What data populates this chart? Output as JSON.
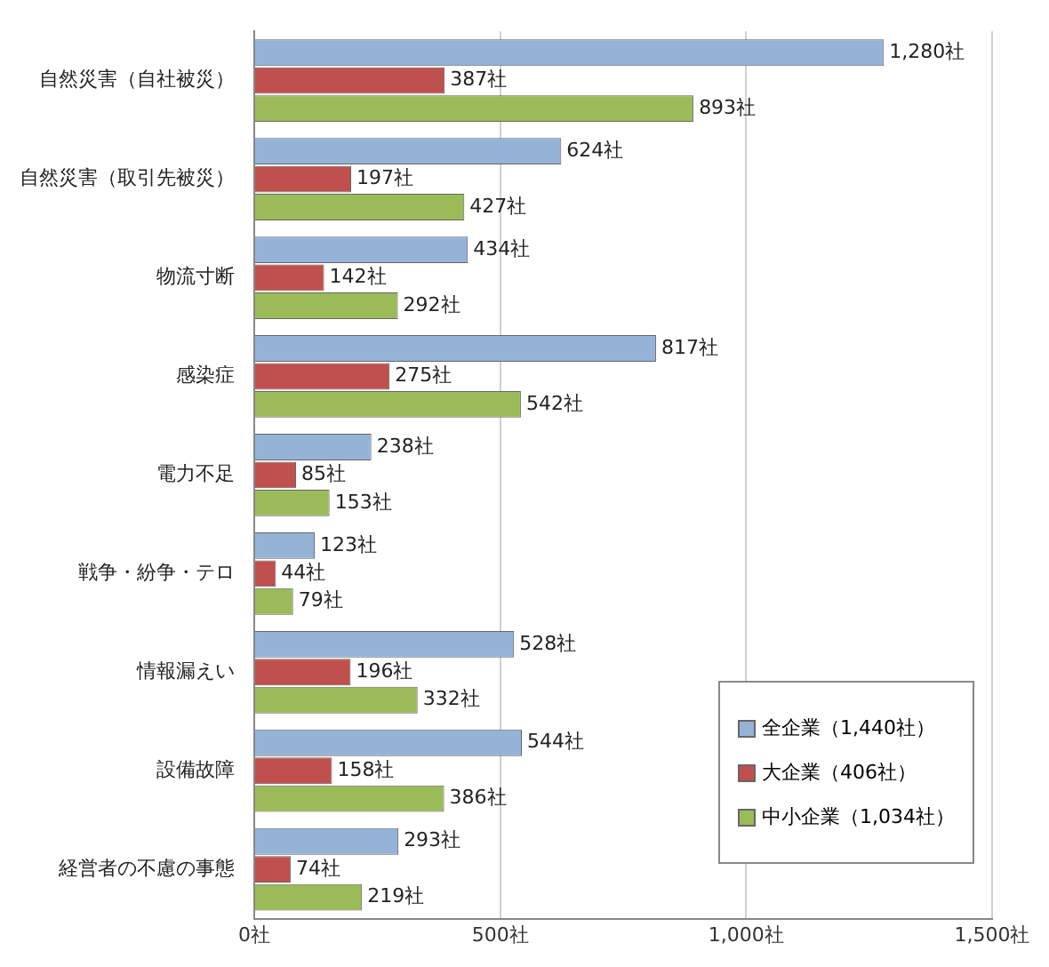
{
  "chart_data": {
    "type": "bar",
    "orientation": "horizontal",
    "categories": [
      "自然災害（自社被災）",
      "自然災害（取引先被災）",
      "物流寸断",
      "感染症",
      "電力不足",
      "戦争・紛争・テロ",
      "情報漏えい",
      "設備故障",
      "経営者の不慮の事態"
    ],
    "series": [
      {
        "name": "全企業（1,440社）",
        "color": "#95b3d7",
        "values": [
          1280,
          624,
          434,
          817,
          238,
          123,
          528,
          544,
          293
        ],
        "value_labels": [
          "1,280社",
          "624社",
          "434社",
          "817社",
          "238社",
          "123社",
          "528社",
          "544社",
          "293社"
        ]
      },
      {
        "name": "大企業（406社）",
        "color": "#c0504d",
        "values": [
          387,
          197,
          142,
          275,
          85,
          44,
          196,
          158,
          74
        ],
        "value_labels": [
          "387社",
          "197社",
          "142社",
          "275社",
          "85社",
          "44社",
          "196社",
          "158社",
          "74社"
        ]
      },
      {
        "name": "中小企業（1,034社）",
        "color": "#9bbb59",
        "values": [
          893,
          427,
          292,
          542,
          153,
          79,
          332,
          386,
          219
        ],
        "value_labels": [
          "893社",
          "427社",
          "292社",
          "542社",
          "153社",
          "79社",
          "332社",
          "386社",
          "219社"
        ]
      }
    ],
    "xlim": [
      0,
      1500
    ],
    "xticks": [
      {
        "value": 0,
        "label": "0社"
      },
      {
        "value": 500,
        "label": "500社"
      },
      {
        "value": 1000,
        "label": "1,000社"
      },
      {
        "value": 1500,
        "label": "1,500社"
      }
    ],
    "grid": "x",
    "legend": "bottom right"
  }
}
